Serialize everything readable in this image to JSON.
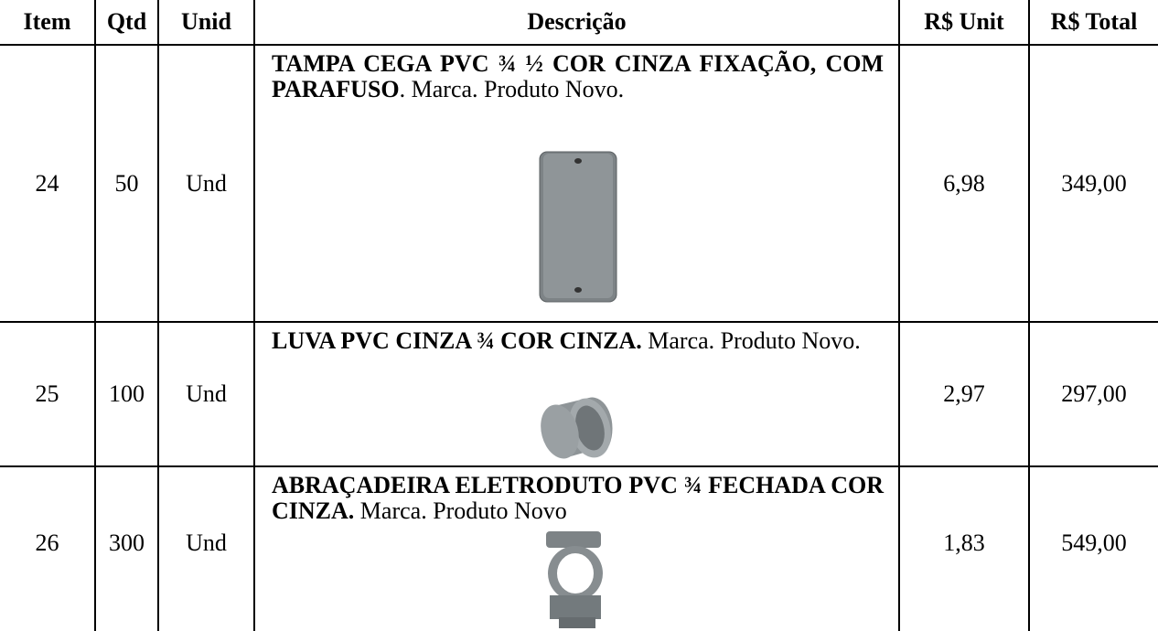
{
  "table": {
    "header": [
      "Item",
      "Qtd",
      "Unid",
      "Descrição",
      "R$ Unit",
      "R$ Total"
    ],
    "rows": [
      {
        "item": "24",
        "qtd": "50",
        "unid": "Und",
        "desc_bold": "TAMPA CEGA PVC ¾ ½ COR CINZA FIXAÇÃO, COM PARAFUSO",
        "desc_text": ". Marca. Produto Novo.",
        "unit": "6,98",
        "total": "349,00"
      },
      {
        "item": "25",
        "qtd": "100",
        "unid": "Und",
        "desc_bold": "LUVA PVC CINZA ¾ COR CINZA.",
        "desc_text": "Marca. Produto Novo.",
        "unit": "2,97",
        "total": "297,00"
      },
      {
        "item": "26",
        "qtd": "300",
        "unid": "Und",
        "desc_bold": "ABRAÇADEIRA ELETRODUTO PVC ¾ FECHADA COR CINZA.",
        "desc_text": "Marca. Produto Novo",
        "unit": "1,83",
        "total": "549,00"
      }
    ]
  }
}
